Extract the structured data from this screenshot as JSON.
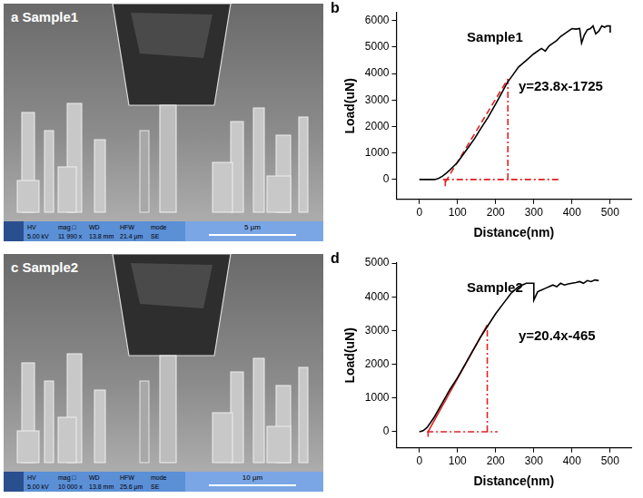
{
  "chart_data": [
    {
      "type": "line",
      "panel_label": "b",
      "x_label": "Distance(nm)",
      "y_label": "Load(uN)",
      "xlim": [
        -60,
        555
      ],
      "xticks": [
        0,
        100,
        200,
        300,
        400,
        500
      ],
      "ylim": [
        -750,
        6300
      ],
      "yticks": [
        0,
        1000,
        2000,
        3000,
        4000,
        5000,
        6000
      ],
      "grid": false,
      "tick_labels": true,
      "annotations": [
        {
          "text": "Sample1"
        },
        {
          "text": "y=23.8x-1725"
        }
      ],
      "series": [
        {
          "color": "#000000",
          "line_style": "solid",
          "x": [
            0,
            20,
            40,
            50,
            60,
            70,
            80,
            90,
            100,
            115,
            130,
            145,
            160,
            180,
            200,
            215,
            230,
            245,
            260,
            280,
            300,
            320,
            330,
            340,
            350,
            360,
            370,
            380,
            390,
            400,
            410,
            420,
            425,
            432,
            440,
            448,
            455,
            462,
            470,
            478,
            485,
            492,
            500,
            500
          ],
          "values": [
            0,
            0,
            0,
            40,
            120,
            230,
            360,
            500,
            650,
            950,
            1250,
            1550,
            1900,
            2350,
            2850,
            3250,
            3650,
            3950,
            4250,
            4500,
            4750,
            4950,
            4850,
            5050,
            5150,
            5250,
            5400,
            5500,
            5600,
            5700,
            5680,
            5700,
            5150,
            5450,
            5650,
            5700,
            5800,
            5500,
            5600,
            5800,
            5750,
            5800,
            5800,
            5550
          ]
        },
        {
          "color": "#e02020",
          "line_style": "dashed",
          "x": [
            68,
            232
          ],
          "values": [
            -100,
            3800
          ]
        },
        {
          "color": "#e02020",
          "line_style": "dashdot",
          "x": [
            232,
            232
          ],
          "values": [
            0,
            3800
          ]
        },
        {
          "color": "#e02020",
          "line_style": "dashdot",
          "x": [
            62,
            365
          ],
          "values": [
            0,
            0
          ]
        },
        {
          "color": "#e02020",
          "line_style": "dashdot",
          "x": [
            68,
            68
          ],
          "values": [
            -250,
            0
          ]
        }
      ]
    },
    {
      "type": "line",
      "panel_label": "d",
      "x_label": "Distance(nm)",
      "y_label": "Load(uN)",
      "xlim": [
        -60,
        555
      ],
      "xticks": [
        0,
        100,
        200,
        300,
        400,
        500
      ],
      "ylim": [
        -480,
        5000
      ],
      "yticks": [
        0,
        1000,
        2000,
        3000,
        4000,
        5000
      ],
      "grid": false,
      "tick_labels": true,
      "annotations": [
        {
          "text": "Sample2"
        },
        {
          "text": "y=20.4x-465"
        }
      ],
      "series": [
        {
          "color": "#000000",
          "line_style": "solid",
          "x": [
            0,
            10,
            20,
            30,
            40,
            60,
            80,
            100,
            120,
            140,
            160,
            180,
            200,
            220,
            240,
            260,
            270,
            280,
            290,
            300,
            300,
            310,
            320,
            330,
            340,
            350,
            360,
            370,
            380,
            390,
            400,
            410,
            420,
            430,
            440,
            450,
            460,
            470
          ],
          "values": [
            0,
            30,
            120,
            280,
            450,
            850,
            1250,
            1600,
            2000,
            2400,
            2800,
            3150,
            3500,
            3800,
            4100,
            4300,
            4350,
            4400,
            4400,
            4400,
            3900,
            4150,
            4200,
            4250,
            4300,
            4350,
            4300,
            4400,
            4350,
            4380,
            4400,
            4420,
            4450,
            4400,
            4480,
            4450,
            4500,
            4480
          ]
        },
        {
          "color": "#e02020",
          "line_style": "solid",
          "x": [
            23,
            178
          ],
          "values": [
            0,
            3166
          ]
        },
        {
          "color": "#e02020",
          "line_style": "dashdot",
          "x": [
            178,
            178
          ],
          "values": [
            0,
            3166
          ]
        },
        {
          "color": "#e02020",
          "line_style": "dashdot",
          "x": [
            20,
            205
          ],
          "values": [
            0,
            0
          ]
        },
        {
          "color": "#e02020",
          "line_style": "dashdot",
          "x": [
            23,
            23
          ],
          "values": [
            -150,
            0
          ]
        }
      ]
    }
  ],
  "sem_images": [
    {
      "panel_label": "a",
      "title": "Sample1",
      "info": [
        {
          "key": "HV",
          "value": "5.00 kV"
        },
        {
          "key": "mag □",
          "value": "11 990 x"
        },
        {
          "key": "WD",
          "value": "13.8 mm"
        },
        {
          "key": "HFW",
          "value": "21.4 µm"
        },
        {
          "key": "mode",
          "value": "SE"
        }
      ],
      "scale_bar": "5 µm"
    },
    {
      "panel_label": "c",
      "title": "Sample2",
      "info": [
        {
          "key": "HV",
          "value": "5.00 kV"
        },
        {
          "key": "mag □",
          "value": "10 000 x"
        },
        {
          "key": "WD",
          "value": "13.8 mm"
        },
        {
          "key": "HFW",
          "value": "25.6 µm"
        },
        {
          "key": "mode",
          "value": "SE"
        }
      ],
      "scale_bar": "10 µm"
    }
  ]
}
